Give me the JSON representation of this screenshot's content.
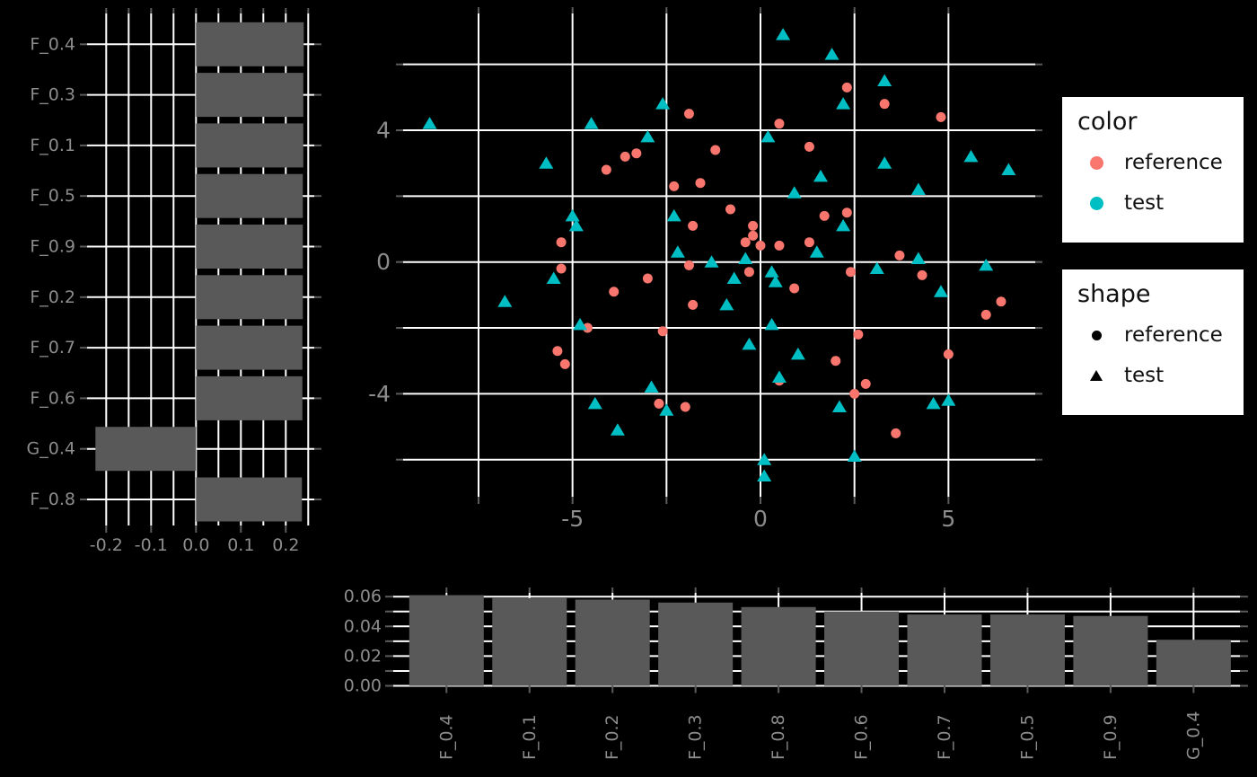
{
  "colors": {
    "background": "#000000",
    "grid": "#ffffff",
    "bar": "#595959",
    "tick": "#5c5c5c",
    "axis_text": "#8c8c8c",
    "reference": "#F8766D",
    "test": "#00BFC4",
    "legend_bg": "#ffffff",
    "legend_text": "#111111"
  },
  "chart_data": [
    {
      "id": "loadings-left",
      "type": "bar",
      "orientation": "horizontal",
      "title": "",
      "xlabel": "",
      "ylabel": "",
      "categories": [
        "F_0.4",
        "F_0.3",
        "F_0.1",
        "F_0.5",
        "F_0.9",
        "F_0.2",
        "F_0.7",
        "F_0.6",
        "G_0.4",
        "F_0.8"
      ],
      "values": [
        0.24,
        0.239,
        0.239,
        0.238,
        0.238,
        0.238,
        0.237,
        0.237,
        -0.224,
        0.236
      ],
      "xlim": [
        -0.245,
        0.265
      ],
      "x_breaks_minor": [
        -0.2,
        -0.15,
        -0.1,
        -0.05,
        0,
        0.05,
        0.1,
        0.15,
        0.2,
        0.25
      ],
      "x_breaks_labeled": [
        -0.2,
        -0.1,
        0,
        0.1,
        0.2
      ],
      "x_labels": [
        "-0.2",
        "-0.1",
        "0.0",
        "0.1",
        "0.2"
      ],
      "grid": true
    },
    {
      "id": "scores-scatter",
      "type": "scatter",
      "title": "",
      "xlabel": "",
      "ylabel": "",
      "xlim": [
        -9.5,
        7.3
      ],
      "ylim": [
        -7.1,
        7.55
      ],
      "x_breaks": [
        -7.5,
        -5,
        -2.5,
        0,
        2.5,
        5
      ],
      "x_breaks_labeled": [
        -5,
        0,
        5
      ],
      "x_labels": [
        "-5",
        "0",
        "5"
      ],
      "y_breaks": [
        -6,
        -4,
        -2,
        0,
        2,
        4,
        6
      ],
      "y_breaks_labeled": [
        -4,
        0,
        4
      ],
      "y_labels": [
        "-4",
        "0",
        "4"
      ],
      "legend_position": "right",
      "series": [
        {
          "name": "reference",
          "marker": "circle",
          "color": "#F8766D",
          "points": [
            [
              -1.9,
              4.5
            ],
            [
              -3.6,
              3.2
            ],
            [
              -3.3,
              3.3
            ],
            [
              -4.1,
              2.8
            ],
            [
              -1.2,
              3.4
            ],
            [
              -2.3,
              2.3
            ],
            [
              -1.6,
              2.4
            ],
            [
              -1.8,
              1.1
            ],
            [
              -5.3,
              0.6
            ],
            [
              -5.3,
              -0.2
            ],
            [
              -3.0,
              -0.5
            ],
            [
              2.3,
              5.3
            ],
            [
              3.3,
              4.8
            ],
            [
              4.8,
              4.4
            ],
            [
              0.5,
              4.2
            ],
            [
              1.3,
              3.5
            ],
            [
              -0.8,
              1.6
            ],
            [
              1.7,
              1.4
            ],
            [
              2.3,
              1.5
            ],
            [
              -0.2,
              1.1
            ],
            [
              -0.4,
              0.6
            ],
            [
              -0.2,
              0.8
            ],
            [
              0.0,
              0.5
            ],
            [
              0.5,
              0.5
            ],
            [
              1.3,
              0.6
            ],
            [
              3.7,
              0.2
            ],
            [
              -3.9,
              -0.9
            ],
            [
              -1.9,
              -0.1
            ],
            [
              -1.8,
              -1.3
            ],
            [
              -4.6,
              -2.0
            ],
            [
              -2.6,
              -2.1
            ],
            [
              -5.4,
              -2.7
            ],
            [
              -5.2,
              -3.1
            ],
            [
              -2.7,
              -4.3
            ],
            [
              -2.0,
              -4.4
            ],
            [
              -0.3,
              -0.3
            ],
            [
              0.9,
              -0.8
            ],
            [
              2.4,
              -0.3
            ],
            [
              4.3,
              -0.4
            ],
            [
              6.4,
              -1.2
            ],
            [
              6.0,
              -1.6
            ],
            [
              2.0,
              -3.0
            ],
            [
              0.5,
              -3.6
            ],
            [
              2.6,
              -2.2
            ],
            [
              5.0,
              -2.8
            ],
            [
              2.8,
              -3.7
            ],
            [
              2.5,
              -4.0
            ],
            [
              3.6,
              -5.2
            ]
          ]
        },
        {
          "name": "test",
          "marker": "triangle",
          "color": "#00BFC4",
          "points": [
            [
              -8.8,
              4.2
            ],
            [
              -2.6,
              4.8
            ],
            [
              -4.5,
              4.2
            ],
            [
              -3.0,
              3.8
            ],
            [
              -5.7,
              3.0
            ],
            [
              -2.3,
              1.4
            ],
            [
              -5.0,
              1.4
            ],
            [
              -4.9,
              1.1
            ],
            [
              -2.2,
              0.3
            ],
            [
              -5.5,
              -0.5
            ],
            [
              0.6,
              6.9
            ],
            [
              1.9,
              6.3
            ],
            [
              3.3,
              5.5
            ],
            [
              2.2,
              4.8
            ],
            [
              0.2,
              3.8
            ],
            [
              5.6,
              3.2
            ],
            [
              6.6,
              2.8
            ],
            [
              3.3,
              3.0
            ],
            [
              1.6,
              2.6
            ],
            [
              0.9,
              2.1
            ],
            [
              4.2,
              2.2
            ],
            [
              2.2,
              1.1
            ],
            [
              1.5,
              0.3
            ],
            [
              4.2,
              0.1
            ],
            [
              6.0,
              -0.1
            ],
            [
              -0.4,
              0.1
            ],
            [
              -6.8,
              -1.2
            ],
            [
              -4.8,
              -1.9
            ],
            [
              -0.9,
              -1.3
            ],
            [
              -2.9,
              -3.8
            ],
            [
              -4.4,
              -4.3
            ],
            [
              -2.5,
              -4.5
            ],
            [
              -3.8,
              -5.1
            ],
            [
              -1.3,
              0.0
            ],
            [
              -0.7,
              -0.5
            ],
            [
              0.3,
              -0.3
            ],
            [
              0.4,
              -0.6
            ],
            [
              3.1,
              -0.2
            ],
            [
              4.8,
              -0.9
            ],
            [
              0.3,
              -1.9
            ],
            [
              -0.3,
              -2.5
            ],
            [
              1.0,
              -2.8
            ],
            [
              0.5,
              -3.5
            ],
            [
              2.1,
              -4.4
            ],
            [
              4.6,
              -4.3
            ],
            [
              5.0,
              -4.2
            ],
            [
              2.5,
              -5.9
            ],
            [
              0.1,
              -6.0
            ],
            [
              0.1,
              -6.5
            ]
          ]
        }
      ]
    },
    {
      "id": "loadings-bottom",
      "type": "bar",
      "orientation": "vertical",
      "title": "",
      "xlabel": "",
      "ylabel": "",
      "categories": [
        "F_0.4",
        "F_0.1",
        "F_0.2",
        "F_0.3",
        "F_0.8",
        "F_0.6",
        "F_0.7",
        "F_0.5",
        "F_0.9",
        "G_0.4"
      ],
      "values": [
        0.061,
        0.059,
        0.058,
        0.056,
        0.053,
        0.05,
        0.048,
        0.048,
        0.047,
        0.031
      ],
      "ylim": [
        0,
        0.0625
      ],
      "y_breaks_minor": [
        0,
        0.01,
        0.02,
        0.03,
        0.04,
        0.05,
        0.06
      ],
      "y_breaks_labeled": [
        0,
        0.02,
        0.04,
        0.06
      ],
      "y_labels": [
        "0.00",
        "0.02",
        "0.04",
        "0.06"
      ],
      "x_label_rotation": 90,
      "grid": true
    }
  ],
  "legends": [
    {
      "title": "color",
      "items": [
        {
          "label": "reference",
          "marker": "dot",
          "color": "#F8766D"
        },
        {
          "label": "test",
          "marker": "dot",
          "color": "#00BFC4"
        }
      ]
    },
    {
      "title": "shape",
      "items": [
        {
          "label": "reference",
          "marker": "circle",
          "color": "#000000"
        },
        {
          "label": "test",
          "marker": "triangle",
          "color": "#000000"
        }
      ]
    }
  ]
}
